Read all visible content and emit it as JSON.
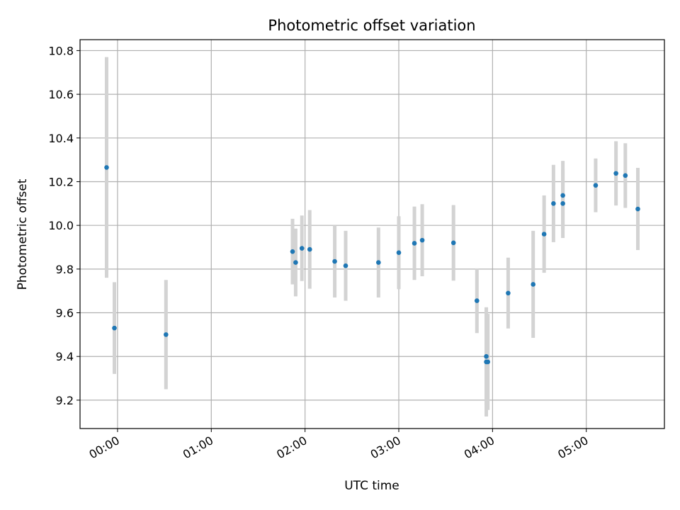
{
  "chart_data": {
    "type": "scatter",
    "title": "Photometric offset variation",
    "xlabel": "UTC time",
    "ylabel": "Photometric offset",
    "x_unit": "UTC time (HH:MM)",
    "xlim": [
      "23:36",
      "05:50"
    ],
    "ylim": [
      9.07,
      10.85
    ],
    "x_ticks": [
      "00:00",
      "01:00",
      "02:00",
      "03:00",
      "04:00",
      "05:00"
    ],
    "y_ticks": [
      9.2,
      9.4,
      9.6,
      9.8,
      10.0,
      10.2,
      10.4,
      10.6,
      10.8
    ],
    "y_tick_labels": [
      "9.2",
      "9.4",
      "9.6",
      "9.8",
      "10.0",
      "10.2",
      "10.4",
      "10.6",
      "10.8"
    ],
    "grid": true,
    "marker_color": "#1f77b4",
    "errorbar_color": "#d3d3d3",
    "points": [
      {
        "x": "23:53",
        "y": 10.265,
        "err": 0.505
      },
      {
        "x": "23:58",
        "y": 9.53,
        "err": 0.21
      },
      {
        "x": "00:31",
        "y": 9.5,
        "err": 0.25
      },
      {
        "x": "01:52",
        "y": 9.88,
        "err": 0.15
      },
      {
        "x": "01:54",
        "y": 9.83,
        "err": 0.155
      },
      {
        "x": "01:58",
        "y": 9.895,
        "err": 0.15
      },
      {
        "x": "02:03",
        "y": 9.89,
        "err": 0.18
      },
      {
        "x": "02:19",
        "y": 9.835,
        "err": 0.165
      },
      {
        "x": "02:26",
        "y": 9.815,
        "err": 0.16
      },
      {
        "x": "02:47",
        "y": 9.83,
        "err": 0.16
      },
      {
        "x": "03:00",
        "y": 9.875,
        "err": 0.167
      },
      {
        "x": "03:10",
        "y": 9.918,
        "err": 0.168
      },
      {
        "x": "03:15",
        "y": 9.932,
        "err": 0.165
      },
      {
        "x": "03:35",
        "y": 9.92,
        "err": 0.173
      },
      {
        "x": "03:50",
        "y": 9.655,
        "err": 0.148
      },
      {
        "x": "03:56",
        "y": 9.4,
        "err": 0.225
      },
      {
        "x": "03:56",
        "y": 9.375,
        "err": 0.25
      },
      {
        "x": "03:57",
        "y": 9.375,
        "err": 0.22
      },
      {
        "x": "04:10",
        "y": 9.69,
        "err": 0.162
      },
      {
        "x": "04:26",
        "y": 9.73,
        "err": 0.245
      },
      {
        "x": "04:33",
        "y": 9.96,
        "err": 0.177
      },
      {
        "x": "04:39",
        "y": 10.1,
        "err": 0.177
      },
      {
        "x": "04:45",
        "y": 10.1,
        "err": 0.158
      },
      {
        "x": "04:45",
        "y": 10.137,
        "err": 0.158
      },
      {
        "x": "05:06",
        "y": 10.183,
        "err": 0.123
      },
      {
        "x": "05:19",
        "y": 10.238,
        "err": 0.147
      },
      {
        "x": "05:25",
        "y": 10.228,
        "err": 0.148
      },
      {
        "x": "05:33",
        "y": 10.075,
        "err": 0.188
      }
    ]
  }
}
